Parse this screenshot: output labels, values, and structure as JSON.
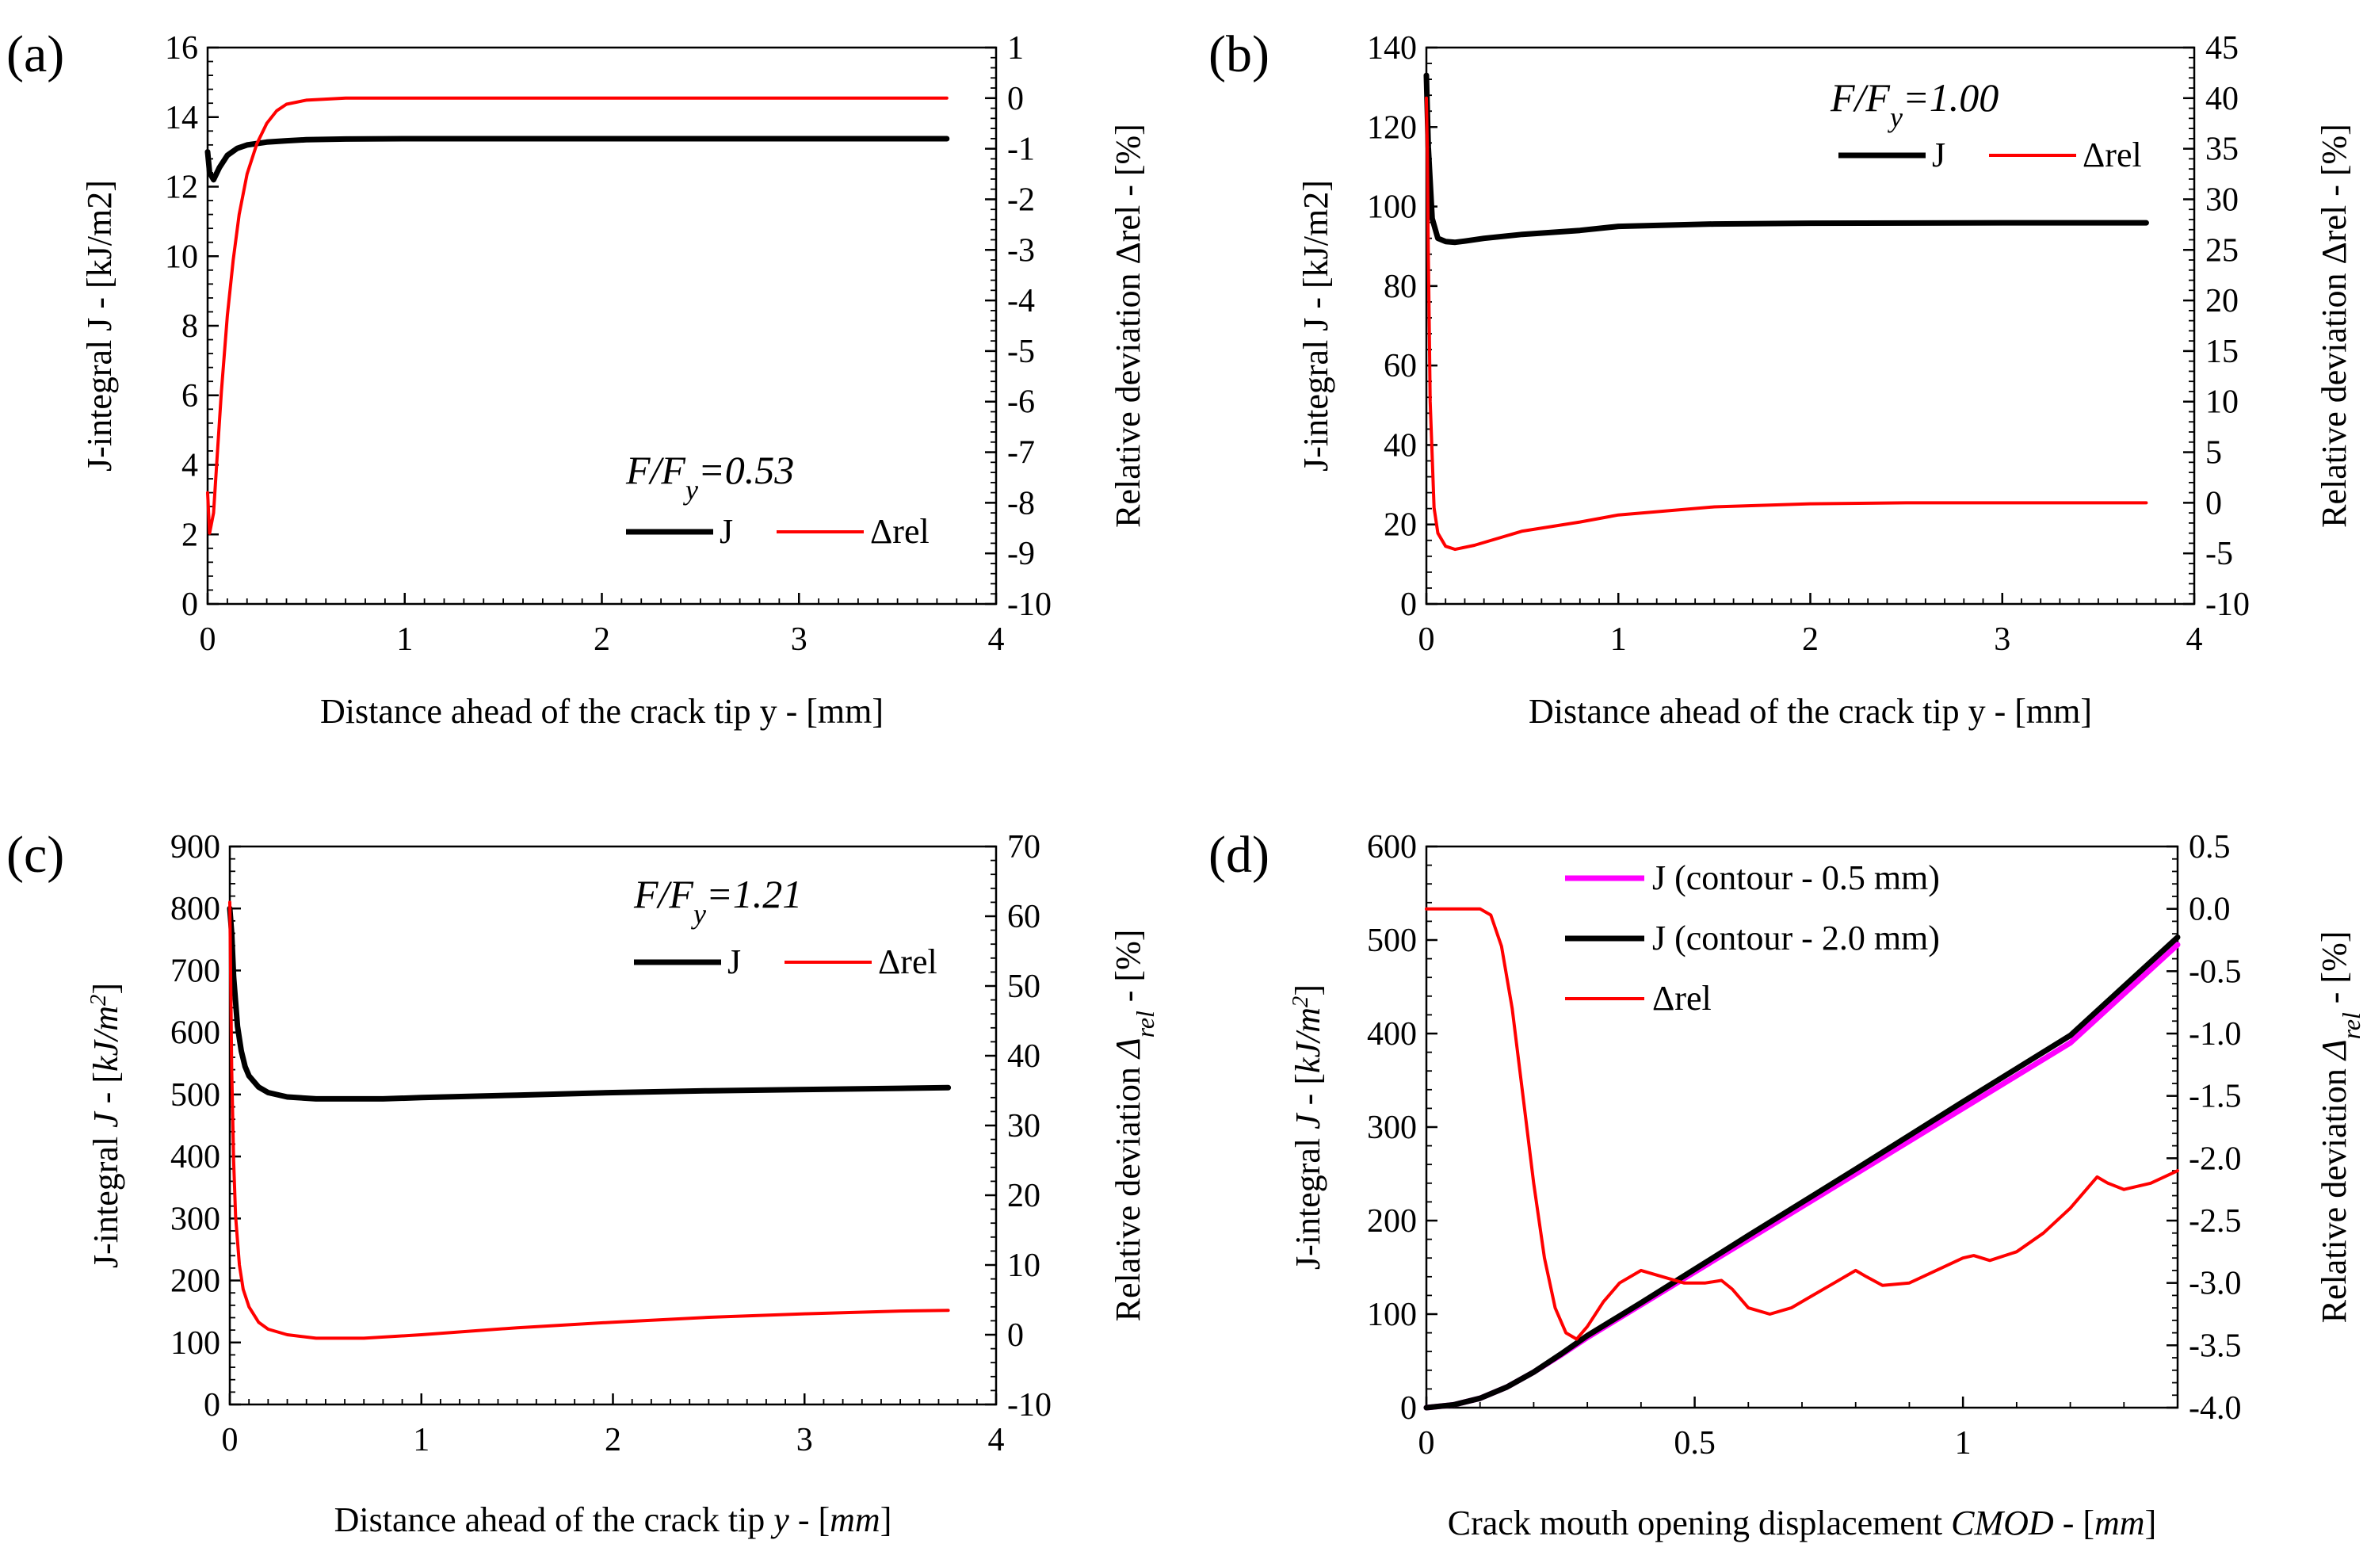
{
  "chart_data": [
    {
      "panel_label": "(a)",
      "type": "line",
      "xlabel": "Distance ahead of the crack tip y - [mm]",
      "ylabel": "J-integral J - [kJ/m2]",
      "y2label": "Relative deviation Δrel - [%]",
      "annotation": "F/F",
      "annotation_sub": "y",
      "annotation_val": "=0.53",
      "xlim": [
        0,
        4
      ],
      "xticks": [
        0,
        1,
        2,
        3,
        4
      ],
      "ylim": [
        0,
        16
      ],
      "yticks": [
        0,
        2,
        4,
        6,
        8,
        10,
        12,
        14,
        16
      ],
      "y2lim": [
        -10,
        1
      ],
      "y2ticks": [
        -10,
        -9,
        -8,
        -7,
        -6,
        -5,
        -4,
        -3,
        -2,
        -1,
        0,
        1
      ],
      "series": [
        {
          "name": "J",
          "axis": "left",
          "color": "#000000",
          "x": [
            0.0,
            0.01,
            0.03,
            0.06,
            0.1,
            0.15,
            0.2,
            0.3,
            0.4,
            0.5,
            0.7,
            1.0,
            2.0,
            3.0,
            3.75
          ],
          "y": [
            13.0,
            12.4,
            12.2,
            12.55,
            12.9,
            13.1,
            13.2,
            13.28,
            13.32,
            13.35,
            13.37,
            13.38,
            13.38,
            13.38,
            13.38
          ]
        },
        {
          "name": "Δrel",
          "axis": "right",
          "color": "#ff0000",
          "x": [
            0.0,
            0.01,
            0.03,
            0.05,
            0.07,
            0.1,
            0.13,
            0.16,
            0.2,
            0.25,
            0.3,
            0.35,
            0.4,
            0.5,
            0.7,
            1.0,
            2.0,
            3.0,
            3.75
          ],
          "y": [
            -7.8,
            -8.6,
            -8.2,
            -7.0,
            -5.8,
            -4.3,
            -3.2,
            -2.3,
            -1.5,
            -0.9,
            -0.5,
            -0.25,
            -0.12,
            -0.04,
            0.0,
            0.0,
            0.0,
            0.0,
            0.0
          ]
        }
      ]
    },
    {
      "panel_label": "(b)",
      "type": "line",
      "xlabel": "Distance ahead of the crack tip y - [mm]",
      "ylabel": "J-integral J - [kJ/m2]",
      "y2label": "Relative deviation Δrel - [%]",
      "annotation": "F/F",
      "annotation_sub": "y",
      "annotation_val": "=1.00",
      "xlim": [
        0,
        4
      ],
      "xticks": [
        0,
        1,
        2,
        3,
        4
      ],
      "ylim": [
        0,
        140
      ],
      "yticks": [
        0,
        20,
        40,
        60,
        80,
        100,
        120,
        140
      ],
      "y2lim": [
        -10,
        45
      ],
      "y2ticks": [
        -10,
        -5,
        0,
        5,
        10,
        15,
        20,
        25,
        30,
        35,
        40,
        45
      ],
      "series": [
        {
          "name": "J",
          "axis": "left",
          "color": "#000000",
          "x": [
            0.0,
            0.01,
            0.03,
            0.06,
            0.1,
            0.15,
            0.2,
            0.3,
            0.5,
            0.8,
            1.0,
            1.5,
            2.0,
            3.0,
            3.75
          ],
          "y": [
            133,
            115,
            97,
            92,
            91.2,
            91.0,
            91.3,
            92.0,
            93.0,
            94.0,
            95.0,
            95.6,
            95.8,
            95.9,
            95.9
          ]
        },
        {
          "name": "Δrel",
          "axis": "right",
          "color": "#ff0000",
          "x": [
            0.0,
            0.005,
            0.01,
            0.02,
            0.04,
            0.06,
            0.1,
            0.15,
            0.25,
            0.5,
            0.8,
            1.0,
            1.5,
            2.0,
            2.5,
            3.0,
            3.75
          ],
          "y": [
            40,
            35,
            25,
            10,
            -0.5,
            -3.0,
            -4.3,
            -4.6,
            -4.2,
            -2.8,
            -1.9,
            -1.2,
            -0.4,
            -0.1,
            0.0,
            0.0,
            0.0
          ]
        }
      ]
    },
    {
      "panel_label": "(c)",
      "type": "line",
      "xlabel_parts": [
        "Distance ahead of the crack tip ",
        "y",
        " - [",
        "mm",
        "]"
      ],
      "ylabel_parts": [
        "J-integral ",
        "J",
        " - [",
        "kJ/m",
        "2",
        "]"
      ],
      "y2label_parts": [
        "Relative deviation ",
        "Δ",
        "rel",
        " - [%]"
      ],
      "annotation": "F/F",
      "annotation_sub": "y",
      "annotation_val": "=1.21",
      "xlim": [
        0,
        4
      ],
      "xticks": [
        0,
        1,
        2,
        3,
        4
      ],
      "ylim": [
        0,
        900
      ],
      "yticks": [
        0,
        100,
        200,
        300,
        400,
        500,
        600,
        700,
        800,
        900
      ],
      "y2lim": [
        -10,
        70
      ],
      "y2ticks": [
        -10,
        0,
        10,
        20,
        30,
        40,
        50,
        60,
        70
      ],
      "series": [
        {
          "name": "J",
          "axis": "left",
          "color": "#000000",
          "x": [
            0.0,
            0.01,
            0.02,
            0.04,
            0.06,
            0.08,
            0.1,
            0.15,
            0.2,
            0.3,
            0.45,
            0.6,
            0.8,
            1.0,
            1.5,
            2.0,
            2.5,
            3.0,
            3.5,
            3.75
          ],
          "y": [
            800,
            760,
            690,
            610,
            570,
            545,
            530,
            512,
            503,
            496,
            493,
            493,
            493,
            495,
            499,
            503,
            506,
            508,
            510,
            511
          ]
        },
        {
          "name": "Δrel",
          "axis": "right",
          "color": "#ff0000",
          "x": [
            0.0,
            0.005,
            0.01,
            0.02,
            0.03,
            0.05,
            0.07,
            0.1,
            0.15,
            0.2,
            0.3,
            0.45,
            0.7,
            1.0,
            1.5,
            2.0,
            2.5,
            3.0,
            3.5,
            3.75
          ],
          "y": [
            62,
            50,
            38,
            25,
            17,
            10,
            6.5,
            4.0,
            1.8,
            0.8,
            0.0,
            -0.5,
            -0.5,
            0.0,
            1.0,
            1.8,
            2.5,
            3.0,
            3.4,
            3.5
          ]
        }
      ]
    },
    {
      "panel_label": "(d)",
      "type": "line",
      "xlabel_parts": [
        "Crack mouth opening displacement ",
        "CMOD",
        " - [",
        "mm",
        "]"
      ],
      "ylabel_parts": [
        "J-integral ",
        "J",
        " - [",
        "kJ/m",
        "2",
        "]"
      ],
      "y2label_parts": [
        "Relative deviation ",
        "Δ",
        "rel",
        " - [%]"
      ],
      "xlim": [
        0,
        1.4
      ],
      "xticks": [
        0,
        0.5,
        1
      ],
      "xticklabels": [
        "0",
        "0.5",
        "1"
      ],
      "ylim": [
        0,
        600
      ],
      "yticks": [
        0,
        100,
        200,
        300,
        400,
        500,
        600
      ],
      "y2lim": [
        -4.0,
        0.5
      ],
      "y2ticks": [
        -4.0,
        -3.5,
        -3.0,
        -2.5,
        -2.0,
        -1.5,
        -1.0,
        -0.5,
        0.0,
        0.5
      ],
      "y2ticklabels": [
        "-4.0",
        "-3.5",
        "-3.0",
        "-2.5",
        "-2.0",
        "-1.5",
        "-1.0",
        "-0.5",
        "0.0",
        "0.5"
      ],
      "series": [
        {
          "name": "J (contour - 0.5 mm)",
          "axis": "left",
          "color": "#ff00ff",
          "x": [
            0.0,
            0.05,
            0.1,
            0.15,
            0.2,
            0.25,
            0.3,
            0.4,
            0.5,
            0.6,
            0.8,
            1.0,
            1.2,
            1.4
          ],
          "y": [
            0,
            3,
            10,
            22,
            38,
            56,
            75,
            110,
            145,
            180,
            250,
            320,
            390,
            495
          ]
        },
        {
          "name": "J (contour - 2.0 mm)",
          "axis": "left",
          "color": "#000000",
          "x": [
            0.0,
            0.05,
            0.1,
            0.15,
            0.2,
            0.25,
            0.3,
            0.4,
            0.5,
            0.6,
            0.8,
            1.0,
            1.2,
            1.4
          ],
          "y": [
            0,
            3,
            10,
            22,
            38,
            57,
            77,
            112,
            148,
            184,
            255,
            327,
            398,
            503
          ]
        },
        {
          "name": "Δrel",
          "axis": "right",
          "color": "#ff0000",
          "x": [
            0.0,
            0.08,
            0.1,
            0.12,
            0.14,
            0.16,
            0.18,
            0.2,
            0.22,
            0.24,
            0.26,
            0.28,
            0.3,
            0.33,
            0.36,
            0.4,
            0.44,
            0.48,
            0.52,
            0.55,
            0.57,
            0.6,
            0.64,
            0.68,
            0.72,
            0.76,
            0.8,
            0.82,
            0.85,
            0.9,
            0.95,
            1.0,
            1.02,
            1.05,
            1.1,
            1.15,
            1.2,
            1.25,
            1.27,
            1.3,
            1.35,
            1.4
          ],
          "y": [
            0.0,
            0.0,
            0.0,
            -0.05,
            -0.3,
            -0.8,
            -1.5,
            -2.2,
            -2.8,
            -3.2,
            -3.4,
            -3.45,
            -3.35,
            -3.15,
            -3.0,
            -2.9,
            -2.95,
            -3.0,
            -3.0,
            -2.98,
            -3.05,
            -3.2,
            -3.25,
            -3.2,
            -3.1,
            -3.0,
            -2.9,
            -2.95,
            -3.02,
            -3.0,
            -2.9,
            -2.8,
            -2.78,
            -2.82,
            -2.75,
            -2.6,
            -2.4,
            -2.15,
            -2.2,
            -2.25,
            -2.2,
            -2.1
          ]
        }
      ]
    }
  ]
}
